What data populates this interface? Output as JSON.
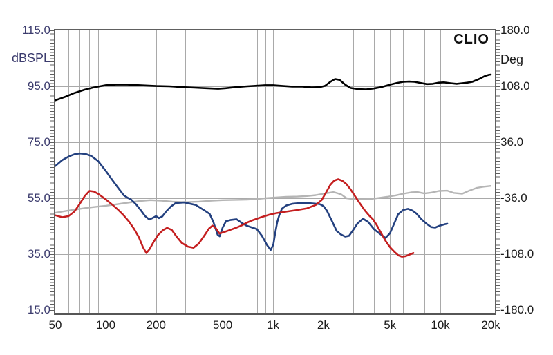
{
  "branding_label": "CLIO",
  "colors": {
    "left_axis_text": "#3c3c6e",
    "axis_text": "#1c1c1c",
    "plot_border": "#5e5e5e",
    "grid_line": "#a9a9a9",
    "tick_mark": "#5e5e5e",
    "black_curve": "#000000",
    "gray_curve": "#b5b5b5",
    "blue_curve": "#23407f",
    "red_curve": "#c41e1f"
  },
  "chart_data": {
    "type": "line",
    "title": "",
    "branding": "CLIO",
    "x_axis": {
      "scale": "log",
      "min_hz": 50,
      "max_hz": 20000,
      "tick_values": [
        50,
        100,
        200,
        500,
        1000,
        2000,
        5000,
        10000,
        20000
      ],
      "tick_labels": [
        "50",
        "100",
        "200",
        "500",
        "1k",
        "2k",
        "5k",
        "10k",
        "20k"
      ]
    },
    "y_axis_left": {
      "label": "dBSPL",
      "min": 15,
      "max": 115,
      "tick_values": [
        115,
        95,
        75,
        55,
        35,
        15
      ],
      "tick_labels": [
        "115.0",
        "95.0",
        "75.0",
        "55.0",
        "35.0",
        "15.0"
      ]
    },
    "y_axis_right": {
      "label": "Deg",
      "min": -180,
      "max": 180,
      "tick_values": [
        180,
        108,
        36,
        -36,
        -108,
        -180
      ],
      "tick_labels": [
        "180.0",
        "108.0",
        "36.0",
        "-36.0",
        "-108.0",
        "-180.0"
      ]
    },
    "grid": {
      "vertical_lines_hz": [
        60,
        70,
        80,
        90,
        100,
        200,
        300,
        400,
        500,
        600,
        700,
        800,
        900,
        1000,
        2000,
        3000,
        4000,
        5000,
        6000,
        7000,
        8000,
        9000,
        10000,
        20000
      ],
      "horizontal_lines_db": [
        95,
        75,
        55,
        35
      ]
    },
    "legend": [],
    "series": [
      {
        "name": "gray-curve",
        "color": "#b5b5b5",
        "stroke_width": 2.4,
        "unit": "dBSPL",
        "points": [
          [
            50,
            49.8
          ],
          [
            60,
            50.6
          ],
          [
            70,
            51.2
          ],
          [
            80,
            51.7
          ],
          [
            90,
            52.0
          ],
          [
            100,
            52.3
          ],
          [
            115,
            52.8
          ],
          [
            135,
            53.4
          ],
          [
            160,
            54.0
          ],
          [
            185,
            54.3
          ],
          [
            215,
            54.1
          ],
          [
            250,
            53.8
          ],
          [
            300,
            53.6
          ],
          [
            360,
            53.8
          ],
          [
            430,
            54.1
          ],
          [
            500,
            54.3
          ],
          [
            600,
            54.4
          ],
          [
            700,
            54.5
          ],
          [
            800,
            54.7
          ],
          [
            900,
            55.0
          ],
          [
            1000,
            55.2
          ],
          [
            1200,
            55.5
          ],
          [
            1400,
            55.6
          ],
          [
            1600,
            55.8
          ],
          [
            1800,
            56.1
          ],
          [
            2050,
            56.7
          ],
          [
            2300,
            57.2
          ],
          [
            2550,
            56.4
          ],
          [
            2750,
            55.0
          ],
          [
            3000,
            54.7
          ],
          [
            3400,
            54.6
          ],
          [
            3800,
            54.7
          ],
          [
            4300,
            55.1
          ],
          [
            4800,
            55.5
          ],
          [
            5400,
            56.0
          ],
          [
            6000,
            56.6
          ],
          [
            6700,
            57.1
          ],
          [
            7300,
            57.2
          ],
          [
            8000,
            56.7
          ],
          [
            8800,
            57.0
          ],
          [
            9800,
            57.6
          ],
          [
            11000,
            57.7
          ],
          [
            12000,
            56.9
          ],
          [
            13500,
            56.6
          ],
          [
            15000,
            57.8
          ],
          [
            16500,
            58.7
          ],
          [
            18000,
            59.1
          ],
          [
            20000,
            59.4
          ]
        ]
      },
      {
        "name": "black-response-curve",
        "color": "#000000",
        "stroke_width": 2.6,
        "unit": "dBSPL",
        "points": [
          [
            50,
            90.0
          ],
          [
            57,
            91.2
          ],
          [
            65,
            92.6
          ],
          [
            75,
            93.8
          ],
          [
            85,
            94.6
          ],
          [
            100,
            95.4
          ],
          [
            115,
            95.6
          ],
          [
            135,
            95.6
          ],
          [
            160,
            95.4
          ],
          [
            200,
            95.1
          ],
          [
            240,
            95.0
          ],
          [
            290,
            94.7
          ],
          [
            340,
            94.5
          ],
          [
            400,
            94.3
          ],
          [
            470,
            94.1
          ],
          [
            520,
            94.3
          ],
          [
            600,
            94.7
          ],
          [
            700,
            95.0
          ],
          [
            800,
            95.2
          ],
          [
            900,
            95.4
          ],
          [
            1000,
            95.4
          ],
          [
            1150,
            95.1
          ],
          [
            1300,
            94.9
          ],
          [
            1500,
            94.9
          ],
          [
            1700,
            94.6
          ],
          [
            1900,
            94.7
          ],
          [
            2050,
            95.2
          ],
          [
            2200,
            96.6
          ],
          [
            2350,
            97.6
          ],
          [
            2500,
            97.3
          ],
          [
            2700,
            95.6
          ],
          [
            2900,
            94.4
          ],
          [
            3200,
            94.0
          ],
          [
            3600,
            93.9
          ],
          [
            4000,
            94.2
          ],
          [
            4500,
            94.8
          ],
          [
            5000,
            95.6
          ],
          [
            5500,
            96.2
          ],
          [
            6000,
            96.6
          ],
          [
            6500,
            96.7
          ],
          [
            7000,
            96.6
          ],
          [
            7600,
            96.2
          ],
          [
            8300,
            95.8
          ],
          [
            9000,
            95.9
          ],
          [
            9800,
            96.3
          ],
          [
            10500,
            96.4
          ],
          [
            11500,
            96.1
          ],
          [
            12500,
            95.9
          ],
          [
            13500,
            96.1
          ],
          [
            14500,
            96.3
          ],
          [
            15500,
            96.6
          ],
          [
            17000,
            97.6
          ],
          [
            18500,
            98.7
          ],
          [
            19500,
            99.1
          ],
          [
            20000,
            99.2
          ]
        ]
      },
      {
        "name": "blue-curve",
        "color": "#23407f",
        "stroke_width": 2.6,
        "unit": "dBSPL",
        "points": [
          [
            50,
            66.5
          ],
          [
            55,
            68.6
          ],
          [
            60,
            69.9
          ],
          [
            65,
            70.7
          ],
          [
            70,
            71.0
          ],
          [
            76,
            70.8
          ],
          [
            82,
            70.1
          ],
          [
            90,
            68.3
          ],
          [
            100,
            64.8
          ],
          [
            108,
            62.0
          ],
          [
            117,
            59.2
          ],
          [
            123,
            57.5
          ],
          [
            128,
            56.1
          ],
          [
            135,
            55.2
          ],
          [
            142,
            54.5
          ],
          [
            152,
            52.8
          ],
          [
            163,
            50.5
          ],
          [
            172,
            48.6
          ],
          [
            182,
            47.4
          ],
          [
            190,
            47.9
          ],
          [
            200,
            48.6
          ],
          [
            208,
            47.9
          ],
          [
            218,
            48.5
          ],
          [
            230,
            50.3
          ],
          [
            245,
            52.0
          ],
          [
            262,
            53.3
          ],
          [
            295,
            53.5
          ],
          [
            345,
            52.6
          ],
          [
            390,
            50.6
          ],
          [
            418,
            49.4
          ],
          [
            440,
            46.5
          ],
          [
            466,
            42.0
          ],
          [
            480,
            41.4
          ],
          [
            500,
            44.5
          ],
          [
            524,
            46.8
          ],
          [
            555,
            47.2
          ],
          [
            605,
            47.5
          ],
          [
            650,
            46.2
          ],
          [
            695,
            45.2
          ],
          [
            760,
            44.4
          ],
          [
            800,
            44.0
          ],
          [
            860,
            41.5
          ],
          [
            920,
            38.3
          ],
          [
            968,
            36.5
          ],
          [
            1005,
            38.5
          ],
          [
            1030,
            42.5
          ],
          [
            1060,
            46.5
          ],
          [
            1090,
            49.0
          ],
          [
            1130,
            51.3
          ],
          [
            1200,
            52.4
          ],
          [
            1300,
            53.0
          ],
          [
            1450,
            53.3
          ],
          [
            1600,
            53.3
          ],
          [
            1750,
            53.1
          ],
          [
            1900,
            52.9
          ],
          [
            2000,
            52.2
          ],
          [
            2100,
            50.5
          ],
          [
            2250,
            46.8
          ],
          [
            2400,
            43.3
          ],
          [
            2550,
            42.0
          ],
          [
            2700,
            41.3
          ],
          [
            2850,
            41.6
          ],
          [
            3000,
            43.5
          ],
          [
            3200,
            46.0
          ],
          [
            3450,
            47.7
          ],
          [
            3700,
            46.5
          ],
          [
            4000,
            44.0
          ],
          [
            4300,
            42.5
          ],
          [
            4700,
            40.8
          ],
          [
            5000,
            42.5
          ],
          [
            5300,
            46.0
          ],
          [
            5600,
            49.3
          ],
          [
            6000,
            50.8
          ],
          [
            6400,
            51.2
          ],
          [
            6800,
            50.6
          ],
          [
            7200,
            49.5
          ],
          [
            7700,
            47.5
          ],
          [
            8300,
            45.8
          ],
          [
            8800,
            44.7
          ],
          [
            9300,
            44.5
          ],
          [
            9900,
            45.2
          ],
          [
            10600,
            45.7
          ],
          [
            11000,
            45.9
          ]
        ]
      },
      {
        "name": "red-curve",
        "color": "#c41e1f",
        "stroke_width": 2.6,
        "unit": "dBSPL",
        "points": [
          [
            50,
            48.9
          ],
          [
            55,
            48.2
          ],
          [
            60,
            48.6
          ],
          [
            65,
            50.2
          ],
          [
            70,
            53.0
          ],
          [
            75,
            55.8
          ],
          [
            80,
            57.6
          ],
          [
            85,
            57.4
          ],
          [
            90,
            56.6
          ],
          [
            100,
            54.6
          ],
          [
            110,
            52.6
          ],
          [
            120,
            50.6
          ],
          [
            128,
            48.9
          ],
          [
            138,
            46.6
          ],
          [
            148,
            44.0
          ],
          [
            158,
            41.0
          ],
          [
            167,
            37.5
          ],
          [
            175,
            35.4
          ],
          [
            183,
            36.8
          ],
          [
            193,
            39.3
          ],
          [
            205,
            41.8
          ],
          [
            220,
            43.6
          ],
          [
            233,
            44.4
          ],
          [
            248,
            43.7
          ],
          [
            265,
            41.3
          ],
          [
            285,
            39.0
          ],
          [
            310,
            37.7
          ],
          [
            335,
            37.3
          ],
          [
            360,
            38.8
          ],
          [
            390,
            41.8
          ],
          [
            415,
            44.2
          ],
          [
            435,
            45.2
          ],
          [
            455,
            44.3
          ],
          [
            478,
            42.4
          ],
          [
            510,
            42.9
          ],
          [
            550,
            43.6
          ],
          [
            600,
            44.4
          ],
          [
            650,
            45.3
          ],
          [
            700,
            46.3
          ],
          [
            760,
            47.2
          ],
          [
            850,
            48.2
          ],
          [
            950,
            49.1
          ],
          [
            1050,
            49.7
          ],
          [
            1200,
            50.2
          ],
          [
            1400,
            50.8
          ],
          [
            1600,
            51.4
          ],
          [
            1800,
            52.6
          ],
          [
            1950,
            54.3
          ],
          [
            2080,
            57.2
          ],
          [
            2200,
            59.8
          ],
          [
            2320,
            61.3
          ],
          [
            2450,
            61.8
          ],
          [
            2600,
            61.2
          ],
          [
            2750,
            60.0
          ],
          [
            2900,
            58.2
          ],
          [
            3100,
            55.6
          ],
          [
            3300,
            53.2
          ],
          [
            3550,
            50.5
          ],
          [
            3750,
            48.8
          ],
          [
            3950,
            47.5
          ],
          [
            4150,
            45.6
          ],
          [
            4400,
            42.8
          ],
          [
            4700,
            39.8
          ],
          [
            5000,
            37.5
          ],
          [
            5300,
            35.9
          ],
          [
            5600,
            34.6
          ],
          [
            5900,
            34.1
          ],
          [
            6200,
            34.3
          ],
          [
            6500,
            34.8
          ],
          [
            6900,
            35.4
          ]
        ]
      }
    ]
  }
}
